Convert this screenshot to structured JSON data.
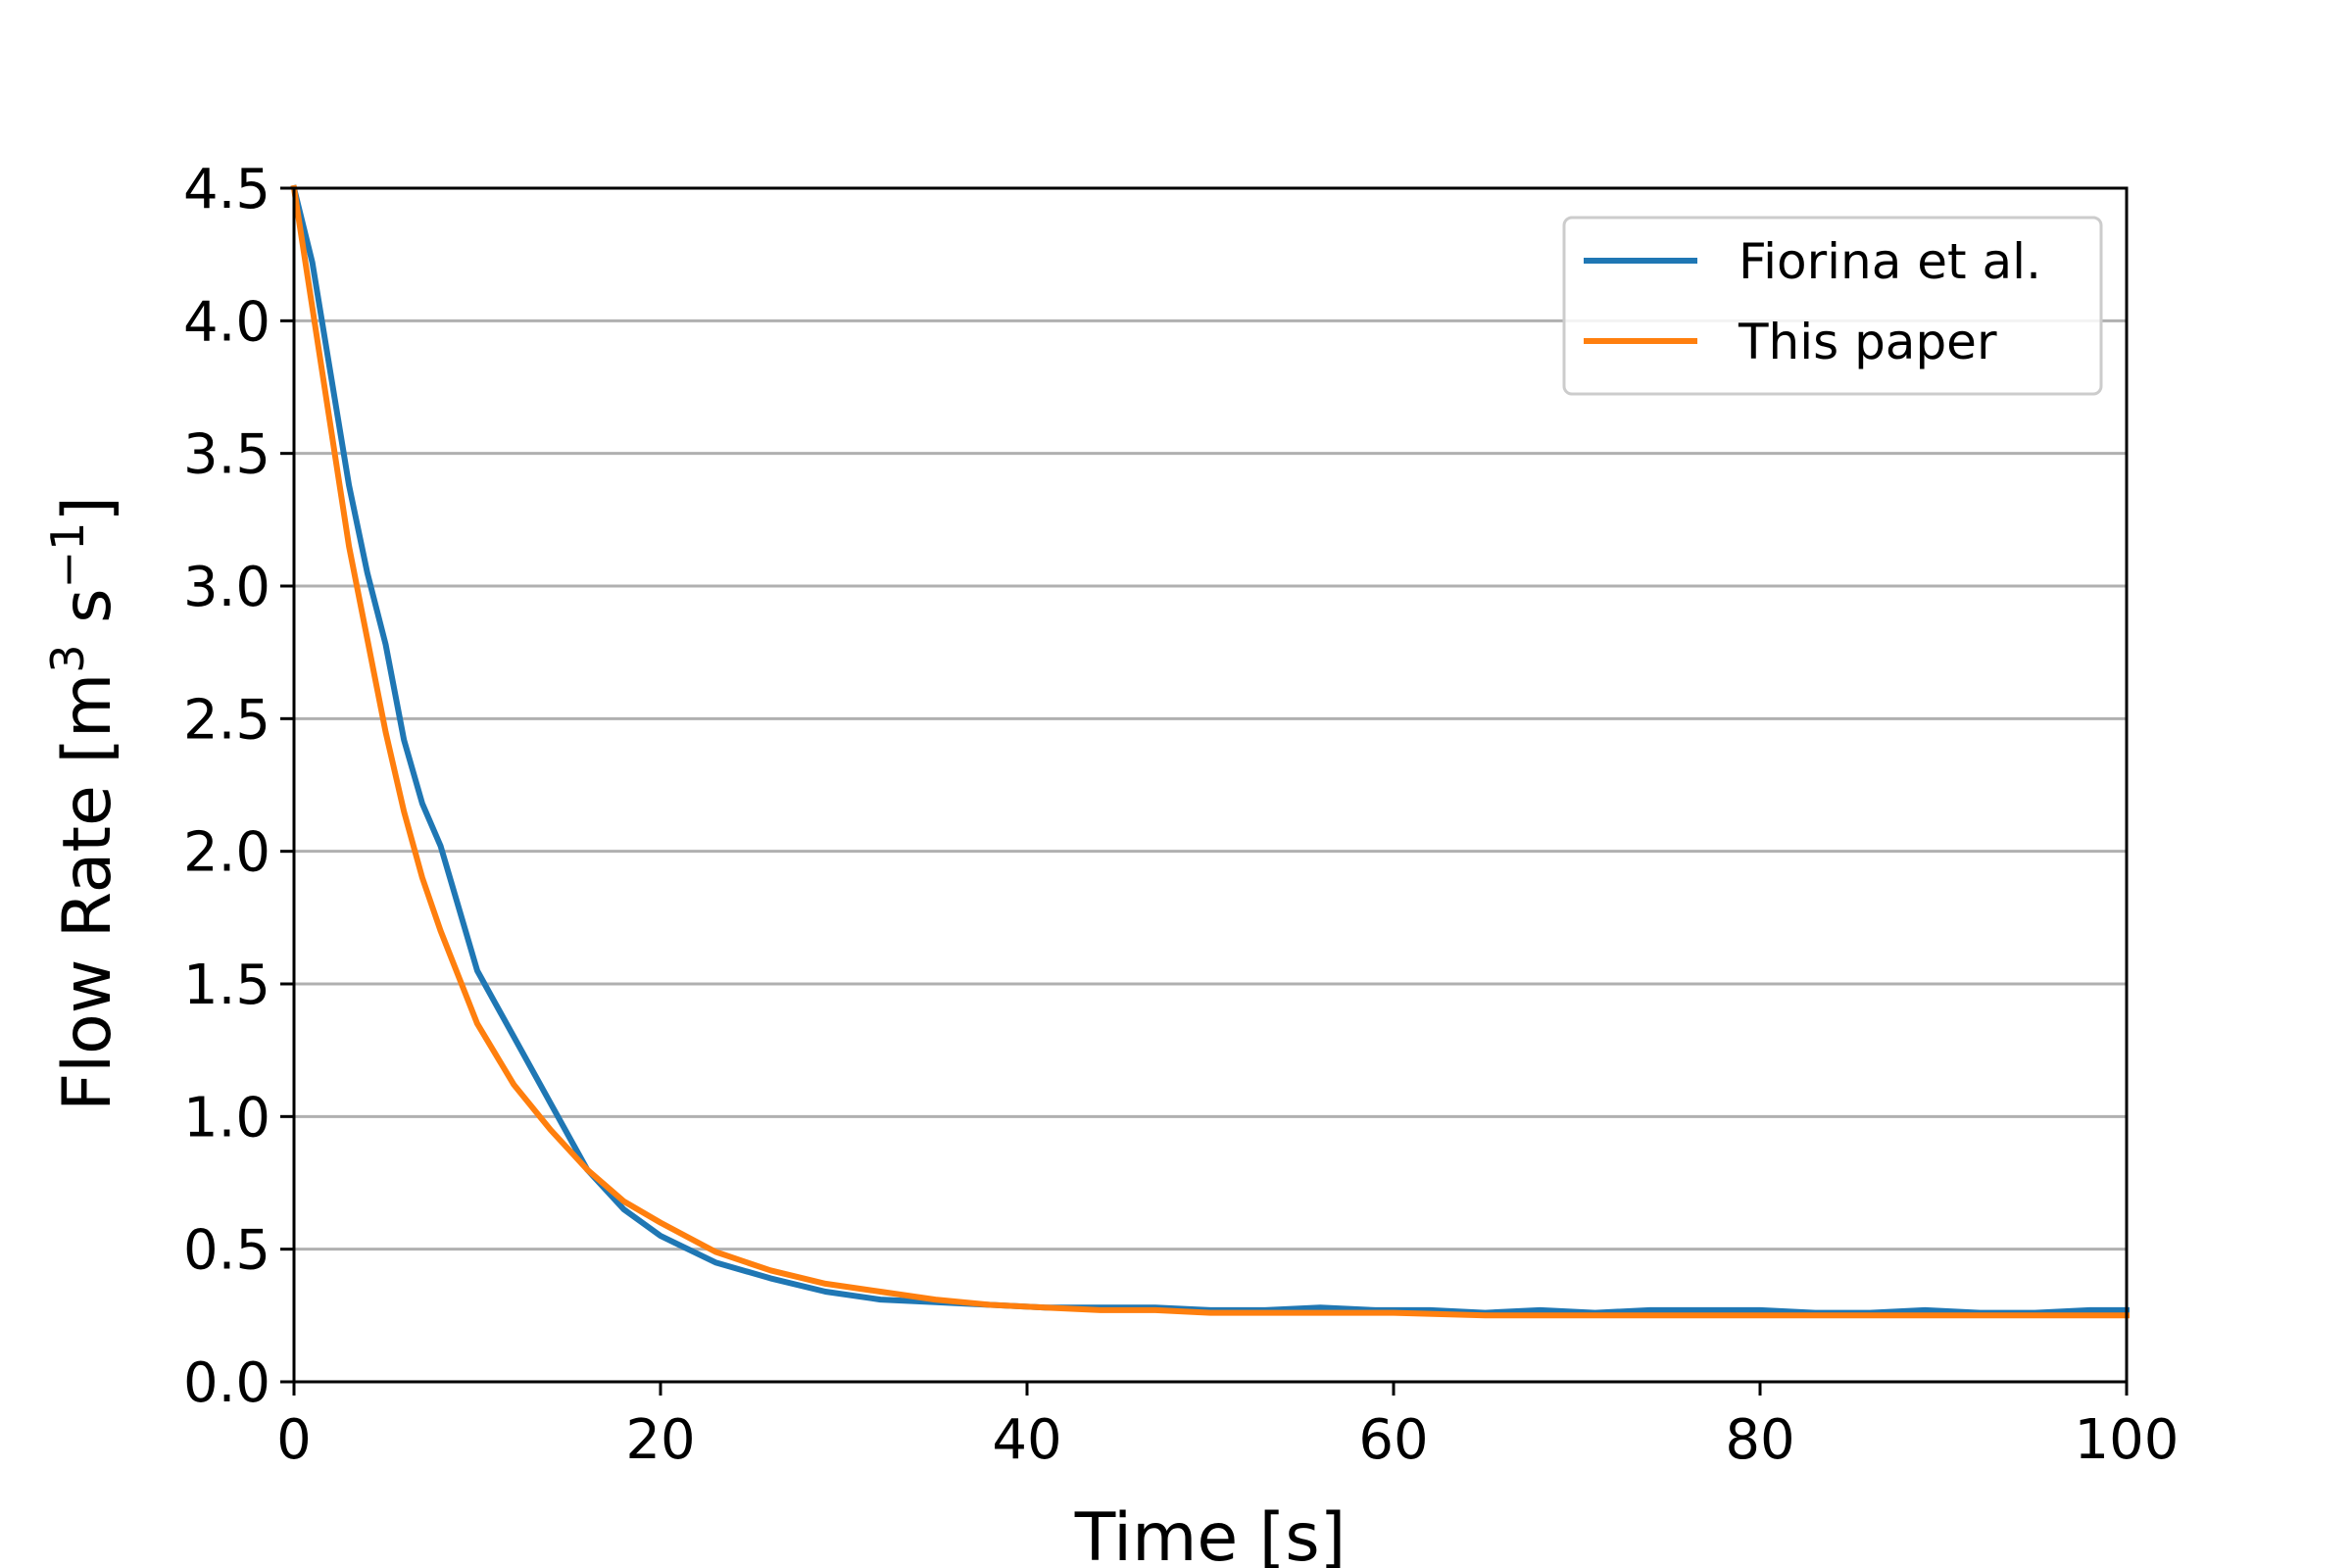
{
  "chart_data": {
    "type": "line",
    "xlabel": "Time [s]",
    "ylabel_main": "Flow Rate [m",
    "ylabel_sup1": "3",
    "ylabel_mid": " s",
    "ylabel_sup2": "−1",
    "ylabel_end": "]",
    "xlim": [
      0,
      100
    ],
    "ylim": [
      0,
      4.5
    ],
    "xticks": [
      0,
      20,
      40,
      60,
      80,
      100
    ],
    "xtick_labels": [
      "0",
      "20",
      "40",
      "60",
      "80",
      "100"
    ],
    "yticks": [
      0,
      0.5,
      1,
      1.5,
      2,
      2.5,
      3,
      3.5,
      4,
      4.5
    ],
    "ytick_labels": [
      "0.0",
      "0.5",
      "1.0",
      "1.5",
      "2.0",
      "2.5",
      "3.0",
      "3.5",
      "4.0",
      "4.5"
    ],
    "grid": "horizontal",
    "legend_position": "top-right",
    "series": [
      {
        "name": "Fiorina et al.",
        "color": "#1f77b4",
        "x": [
          0,
          1,
          2,
          3,
          4,
          5,
          6,
          7,
          8,
          10,
          12,
          14,
          16,
          18,
          20,
          23,
          26,
          29,
          32,
          35,
          38,
          41,
          44,
          47,
          50,
          53,
          56,
          59,
          62,
          65,
          68,
          71,
          74,
          77,
          80,
          83,
          86,
          89,
          92,
          95,
          98,
          100
        ],
        "y": [
          4.5,
          4.22,
          3.8,
          3.38,
          3.05,
          2.78,
          2.42,
          2.18,
          2.02,
          1.55,
          1.3,
          1.05,
          0.8,
          0.65,
          0.55,
          0.45,
          0.39,
          0.34,
          0.31,
          0.3,
          0.29,
          0.28,
          0.28,
          0.28,
          0.27,
          0.27,
          0.28,
          0.27,
          0.27,
          0.26,
          0.27,
          0.26,
          0.27,
          0.27,
          0.27,
          0.26,
          0.26,
          0.27,
          0.26,
          0.26,
          0.27,
          0.27
        ]
      },
      {
        "name": "This paper",
        "color": "#ff7f0e",
        "x": [
          0,
          1,
          2,
          3,
          4,
          5,
          6,
          7,
          8,
          10,
          12,
          14,
          16,
          18,
          20,
          23,
          26,
          29,
          32,
          35,
          38,
          41,
          44,
          47,
          50,
          55,
          60,
          65,
          70,
          75,
          80,
          85,
          90,
          95,
          100
        ],
        "y": [
          4.5,
          4.05,
          3.6,
          3.15,
          2.8,
          2.45,
          2.15,
          1.9,
          1.7,
          1.35,
          1.12,
          0.95,
          0.8,
          0.68,
          0.6,
          0.49,
          0.42,
          0.37,
          0.34,
          0.31,
          0.29,
          0.28,
          0.27,
          0.27,
          0.26,
          0.26,
          0.26,
          0.25,
          0.25,
          0.25,
          0.25,
          0.25,
          0.25,
          0.25,
          0.25
        ]
      }
    ]
  }
}
